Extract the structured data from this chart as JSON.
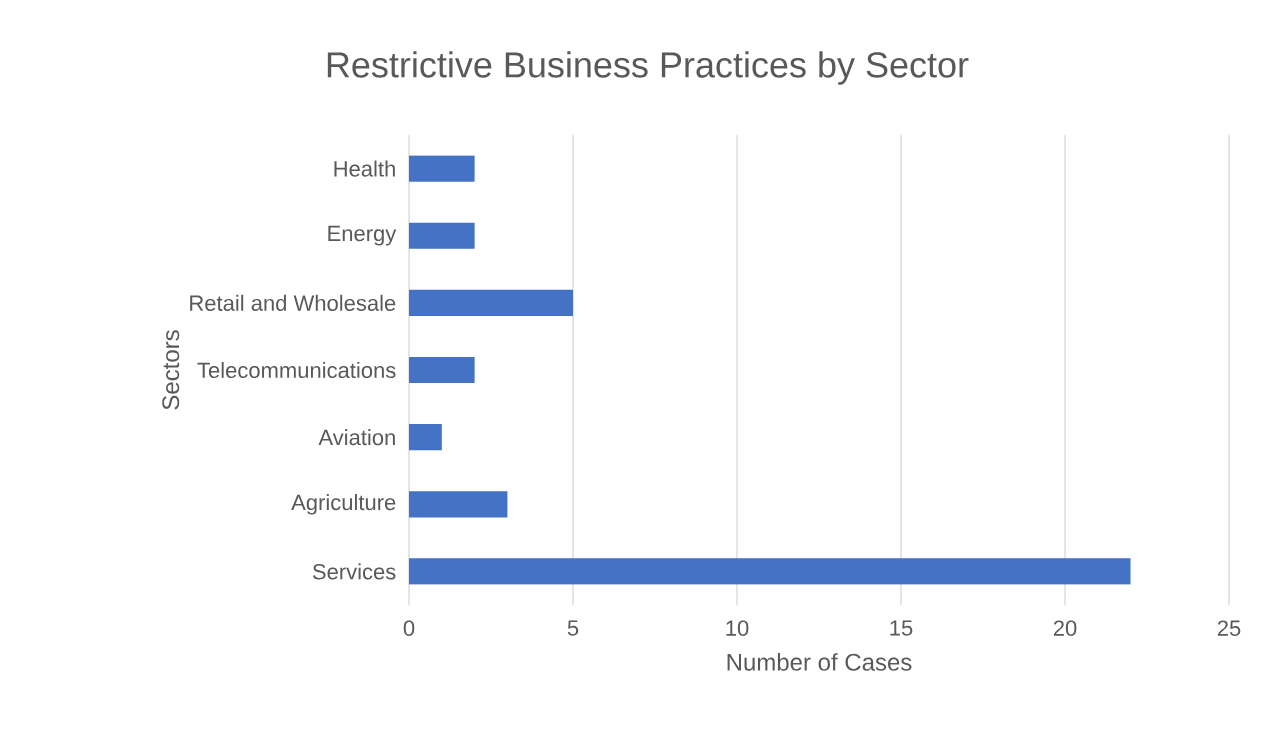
{
  "chart_data": {
    "type": "bar",
    "orientation": "horizontal",
    "title": "Restrictive Business Practices by Sector",
    "xlabel": "Number of Cases",
    "ylabel": "Sectors",
    "categories": [
      "Health",
      "Energy",
      "Retail and Wholesale",
      "Telecommunications",
      "Aviation",
      "Agriculture",
      "Services"
    ],
    "values": [
      2,
      2,
      5,
      2,
      1,
      3,
      22
    ],
    "color": "#4472c4",
    "xlim": [
      0,
      25
    ],
    "xticks": [
      0,
      5,
      10,
      15,
      20,
      25
    ],
    "grid": "x"
  }
}
